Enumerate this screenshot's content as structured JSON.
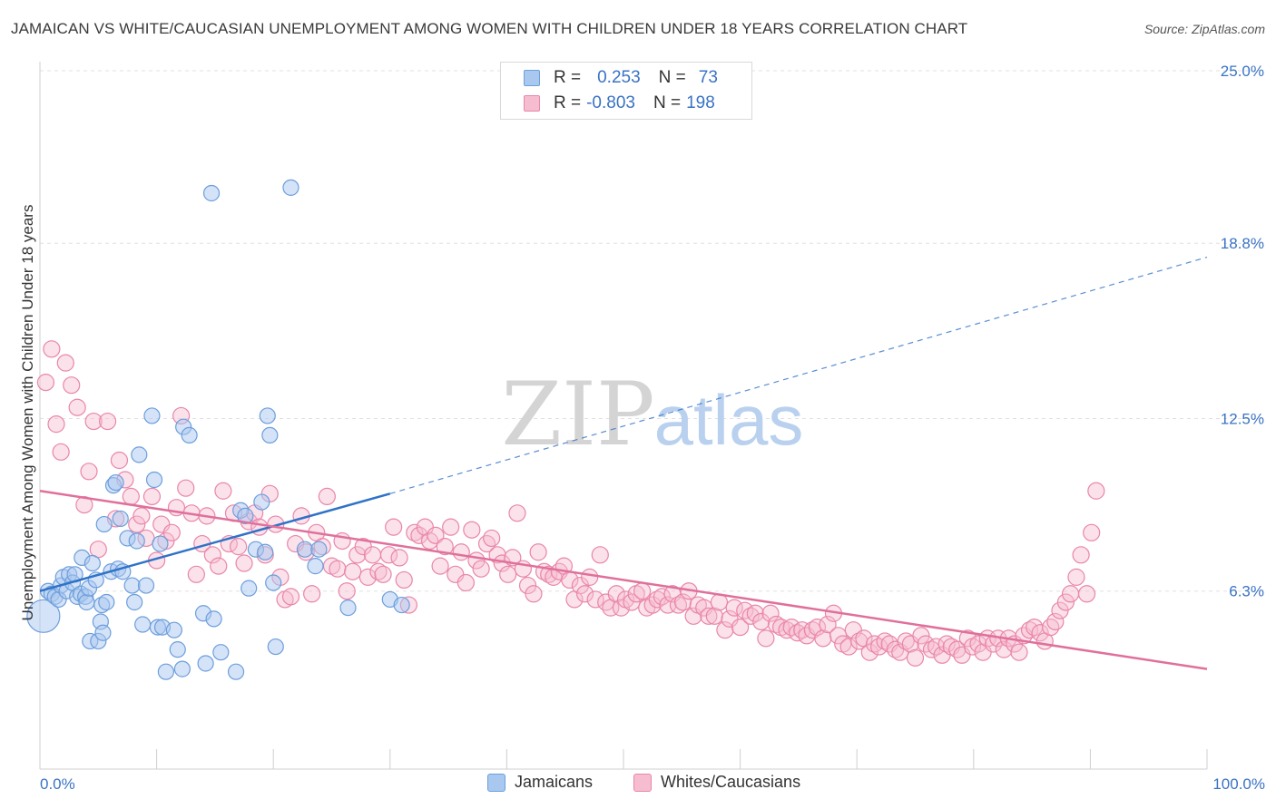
{
  "title": "JAMAICAN VS WHITE/CAUCASIAN UNEMPLOYMENT AMONG WOMEN WITH CHILDREN UNDER 18 YEARS CORRELATION CHART",
  "source": "Source: ZipAtlas.com",
  "watermark": {
    "zip": "ZIP",
    "atlas": "atlas"
  },
  "legend": {
    "rows": [
      {
        "r_label": "R =",
        "r_value": "0.253",
        "n_label": "N =",
        "n_value": "73"
      },
      {
        "r_label": "R =",
        "r_value": "-0.803",
        "n_label": "N =",
        "n_value": "198"
      }
    ]
  },
  "bottom_legend": {
    "series_a": "Jamaicans",
    "series_b": "Whites/Caucasians"
  },
  "colors": {
    "blue_fill": "#a9c8ef",
    "blue_stroke": "#6c9edc",
    "blue_line": "#2f72c8",
    "pink_fill": "#f6bdd0",
    "pink_stroke": "#e986a9",
    "pink_line": "#e0709a",
    "tick_label": "#3a73c4",
    "grid": "#e0e0e0"
  },
  "chart_data": {
    "type": "scatter",
    "xlabel": "",
    "ylabel": "Unemployment Among Women with Children Under 18 years",
    "xlim": [
      0,
      100
    ],
    "ylim": [
      0,
      25.0
    ],
    "x_tick_labels": [
      "0.0%",
      "100.0%"
    ],
    "y_ticks": [
      6.3,
      12.5,
      18.8,
      25.0
    ],
    "y_tick_labels": [
      "6.3%",
      "12.5%",
      "18.8%",
      "25.0%"
    ],
    "grid": true,
    "legend_position": "top-center",
    "series": [
      {
        "name": "Jamaicans",
        "r": 0.253,
        "n": 73,
        "trend": {
          "x0": 0,
          "y0": 6.3,
          "x1": 30,
          "y1": 9.8,
          "dashed_to_x": 100,
          "dashed_to_y": 18.3
        },
        "points": [
          [
            0.3,
            5.4
          ],
          [
            0.7,
            6.3
          ],
          [
            1.0,
            6.2
          ],
          [
            1.3,
            6.1
          ],
          [
            1.6,
            6.0
          ],
          [
            1.8,
            6.5
          ],
          [
            2.0,
            6.8
          ],
          [
            2.3,
            6.3
          ],
          [
            2.5,
            6.9
          ],
          [
            2.8,
            6.6
          ],
          [
            3.0,
            6.9
          ],
          [
            3.2,
            6.1
          ],
          [
            3.5,
            6.2
          ],
          [
            3.6,
            7.5
          ],
          [
            3.9,
            6.1
          ],
          [
            4.0,
            5.9
          ],
          [
            4.2,
            6.4
          ],
          [
            4.3,
            4.5
          ],
          [
            4.5,
            7.3
          ],
          [
            4.8,
            6.7
          ],
          [
            5.0,
            4.5
          ],
          [
            5.2,
            5.2
          ],
          [
            5.3,
            5.8
          ],
          [
            5.4,
            4.8
          ],
          [
            5.5,
            8.7
          ],
          [
            5.7,
            5.9
          ],
          [
            6.1,
            7.0
          ],
          [
            6.3,
            10.1
          ],
          [
            6.5,
            10.2
          ],
          [
            6.7,
            7.1
          ],
          [
            6.9,
            8.9
          ],
          [
            7.1,
            7.0
          ],
          [
            7.5,
            8.2
          ],
          [
            7.9,
            6.5
          ],
          [
            8.1,
            5.9
          ],
          [
            8.3,
            8.1
          ],
          [
            8.5,
            11.2
          ],
          [
            8.8,
            5.1
          ],
          [
            9.1,
            6.5
          ],
          [
            9.6,
            12.6
          ],
          [
            9.8,
            10.3
          ],
          [
            10.1,
            5.0
          ],
          [
            10.3,
            8.0
          ],
          [
            10.5,
            5.0
          ],
          [
            10.8,
            3.4
          ],
          [
            11.5,
            4.9
          ],
          [
            11.8,
            4.2
          ],
          [
            12.2,
            3.5
          ],
          [
            12.3,
            12.2
          ],
          [
            12.8,
            11.9
          ],
          [
            14.0,
            5.5
          ],
          [
            14.2,
            3.7
          ],
          [
            14.7,
            20.6
          ],
          [
            14.9,
            5.3
          ],
          [
            15.5,
            4.1
          ],
          [
            16.8,
            3.4
          ],
          [
            17.2,
            9.2
          ],
          [
            17.6,
            9.0
          ],
          [
            17.9,
            6.4
          ],
          [
            18.5,
            7.8
          ],
          [
            19.0,
            9.5
          ],
          [
            19.3,
            7.7
          ],
          [
            19.5,
            12.6
          ],
          [
            19.7,
            11.9
          ],
          [
            20.0,
            6.6
          ],
          [
            20.2,
            4.3
          ],
          [
            21.5,
            20.8
          ],
          [
            22.7,
            7.8
          ],
          [
            23.6,
            7.2
          ],
          [
            23.9,
            7.8
          ],
          [
            26.4,
            5.7
          ],
          [
            30.0,
            6.0
          ],
          [
            31.0,
            5.8
          ]
        ]
      },
      {
        "name": "Whites/Caucasians",
        "r": -0.803,
        "n": 198,
        "trend": {
          "x0": 0,
          "y0": 9.9,
          "x1": 100,
          "y1": 3.5
        },
        "points": [
          [
            0.5,
            13.8
          ],
          [
            1.0,
            15.0
          ],
          [
            1.4,
            12.3
          ],
          [
            1.8,
            11.3
          ],
          [
            2.2,
            14.5
          ],
          [
            2.7,
            13.7
          ],
          [
            3.2,
            12.9
          ],
          [
            3.8,
            9.4
          ],
          [
            4.2,
            10.6
          ],
          [
            4.6,
            12.4
          ],
          [
            5.0,
            7.8
          ],
          [
            5.8,
            12.4
          ],
          [
            6.5,
            8.9
          ],
          [
            6.8,
            11.0
          ],
          [
            7.3,
            10.3
          ],
          [
            7.8,
            9.7
          ],
          [
            8.3,
            8.7
          ],
          [
            8.7,
            9.0
          ],
          [
            9.1,
            8.2
          ],
          [
            9.6,
            9.7
          ],
          [
            10.0,
            7.4
          ],
          [
            10.4,
            8.7
          ],
          [
            10.8,
            8.1
          ],
          [
            11.3,
            8.4
          ],
          [
            11.7,
            9.3
          ],
          [
            12.1,
            12.6
          ],
          [
            12.5,
            10.0
          ],
          [
            13.0,
            9.1
          ],
          [
            13.4,
            6.9
          ],
          [
            13.9,
            8.0
          ],
          [
            14.3,
            9.0
          ],
          [
            14.8,
            7.6
          ],
          [
            15.3,
            7.2
          ],
          [
            15.7,
            9.9
          ],
          [
            16.2,
            8.0
          ],
          [
            16.6,
            9.1
          ],
          [
            17.0,
            7.9
          ],
          [
            17.5,
            7.3
          ],
          [
            17.9,
            8.8
          ],
          [
            18.4,
            9.1
          ],
          [
            18.8,
            8.6
          ],
          [
            19.3,
            7.6
          ],
          [
            19.7,
            9.8
          ],
          [
            20.2,
            8.7
          ],
          [
            20.6,
            6.8
          ],
          [
            21.0,
            6.0
          ],
          [
            21.5,
            6.1
          ],
          [
            21.9,
            8.0
          ],
          [
            22.4,
            9.0
          ],
          [
            22.8,
            7.7
          ],
          [
            23.3,
            6.2
          ],
          [
            23.7,
            8.4
          ],
          [
            24.2,
            7.9
          ],
          [
            24.6,
            9.7
          ],
          [
            25.0,
            7.2
          ],
          [
            25.5,
            7.1
          ],
          [
            25.9,
            8.1
          ],
          [
            26.3,
            6.3
          ],
          [
            26.8,
            7.0
          ],
          [
            27.2,
            7.6
          ],
          [
            27.7,
            7.9
          ],
          [
            28.1,
            6.8
          ],
          [
            28.5,
            7.6
          ],
          [
            29.0,
            7.0
          ],
          [
            29.4,
            6.9
          ],
          [
            29.9,
            7.6
          ],
          [
            30.3,
            8.6
          ],
          [
            30.8,
            7.5
          ],
          [
            31.2,
            6.7
          ],
          [
            31.6,
            5.8
          ],
          [
            32.1,
            8.4
          ],
          [
            32.5,
            8.3
          ],
          [
            33.0,
            8.6
          ],
          [
            33.4,
            8.1
          ],
          [
            33.9,
            8.3
          ],
          [
            34.3,
            7.2
          ],
          [
            34.7,
            7.9
          ],
          [
            35.2,
            8.6
          ],
          [
            35.6,
            6.9
          ],
          [
            36.1,
            7.7
          ],
          [
            36.5,
            6.6
          ],
          [
            37.0,
            8.5
          ],
          [
            37.4,
            7.4
          ],
          [
            37.8,
            7.1
          ],
          [
            38.3,
            8.0
          ],
          [
            38.7,
            8.2
          ],
          [
            39.2,
            7.6
          ],
          [
            39.6,
            7.3
          ],
          [
            40.1,
            6.9
          ],
          [
            40.5,
            7.5
          ],
          [
            40.9,
            9.1
          ],
          [
            41.4,
            7.1
          ],
          [
            41.8,
            6.5
          ],
          [
            42.3,
            6.2
          ],
          [
            42.7,
            7.7
          ],
          [
            43.2,
            7.0
          ],
          [
            43.6,
            6.9
          ],
          [
            44.0,
            6.8
          ],
          [
            44.5,
            7.0
          ],
          [
            44.9,
            7.2
          ],
          [
            45.4,
            6.7
          ],
          [
            45.8,
            6.0
          ],
          [
            46.3,
            6.5
          ],
          [
            46.7,
            6.2
          ],
          [
            47.1,
            6.8
          ],
          [
            47.6,
            6.0
          ],
          [
            48.0,
            7.6
          ],
          [
            48.5,
            5.9
          ],
          [
            48.9,
            5.7
          ],
          [
            49.4,
            6.2
          ],
          [
            49.8,
            5.7
          ],
          [
            50.2,
            6.0
          ],
          [
            50.7,
            5.9
          ],
          [
            51.1,
            6.2
          ],
          [
            51.6,
            6.3
          ],
          [
            52.0,
            5.7
          ],
          [
            52.5,
            5.8
          ],
          [
            52.9,
            6.0
          ],
          [
            53.3,
            6.1
          ],
          [
            53.8,
            5.8
          ],
          [
            54.2,
            6.2
          ],
          [
            54.7,
            5.8
          ],
          [
            55.1,
            5.9
          ],
          [
            55.6,
            6.3
          ],
          [
            56.0,
            5.4
          ],
          [
            56.4,
            5.8
          ],
          [
            56.9,
            5.7
          ],
          [
            57.3,
            5.4
          ],
          [
            57.8,
            5.4
          ],
          [
            58.2,
            5.9
          ],
          [
            58.7,
            4.9
          ],
          [
            59.1,
            5.3
          ],
          [
            59.5,
            5.7
          ],
          [
            60.0,
            5.0
          ],
          [
            60.4,
            5.6
          ],
          [
            60.9,
            5.4
          ],
          [
            61.3,
            5.5
          ],
          [
            61.8,
            5.2
          ],
          [
            62.2,
            4.6
          ],
          [
            62.6,
            5.5
          ],
          [
            63.1,
            5.1
          ],
          [
            63.5,
            5.0
          ],
          [
            64.0,
            4.9
          ],
          [
            64.4,
            5.0
          ],
          [
            64.9,
            4.8
          ],
          [
            65.3,
            4.9
          ],
          [
            65.7,
            4.7
          ],
          [
            66.2,
            4.9
          ],
          [
            66.6,
            5.0
          ],
          [
            67.1,
            4.6
          ],
          [
            67.5,
            5.1
          ],
          [
            68.0,
            5.5
          ],
          [
            68.4,
            4.7
          ],
          [
            68.8,
            4.4
          ],
          [
            69.3,
            4.3
          ],
          [
            69.7,
            4.9
          ],
          [
            70.2,
            4.5
          ],
          [
            70.6,
            4.6
          ],
          [
            71.1,
            4.1
          ],
          [
            71.5,
            4.4
          ],
          [
            71.9,
            4.3
          ],
          [
            72.4,
            4.5
          ],
          [
            72.8,
            4.4
          ],
          [
            73.3,
            4.2
          ],
          [
            73.7,
            4.1
          ],
          [
            74.2,
            4.5
          ],
          [
            74.6,
            4.4
          ],
          [
            75.0,
            3.9
          ],
          [
            75.5,
            4.7
          ],
          [
            75.9,
            4.4
          ],
          [
            76.4,
            4.2
          ],
          [
            76.8,
            4.3
          ],
          [
            77.3,
            4.0
          ],
          [
            77.7,
            4.4
          ],
          [
            78.1,
            4.3
          ],
          [
            78.6,
            4.2
          ],
          [
            79.0,
            4.0
          ],
          [
            79.5,
            4.6
          ],
          [
            79.9,
            4.3
          ],
          [
            80.4,
            4.4
          ],
          [
            80.8,
            4.1
          ],
          [
            81.2,
            4.6
          ],
          [
            81.7,
            4.4
          ],
          [
            82.1,
            4.6
          ],
          [
            82.6,
            4.2
          ],
          [
            83.0,
            4.6
          ],
          [
            83.5,
            4.4
          ],
          [
            83.9,
            4.1
          ],
          [
            84.3,
            4.7
          ],
          [
            84.8,
            4.9
          ],
          [
            85.2,
            5.0
          ],
          [
            85.7,
            4.8
          ],
          [
            86.1,
            4.5
          ],
          [
            86.6,
            5.0
          ],
          [
            87.0,
            5.2
          ],
          [
            87.4,
            5.6
          ],
          [
            87.9,
            5.9
          ],
          [
            88.3,
            6.2
          ],
          [
            88.8,
            6.8
          ],
          [
            89.2,
            7.6
          ],
          [
            89.7,
            6.2
          ],
          [
            90.1,
            8.4
          ],
          [
            90.5,
            9.9
          ]
        ]
      }
    ]
  }
}
